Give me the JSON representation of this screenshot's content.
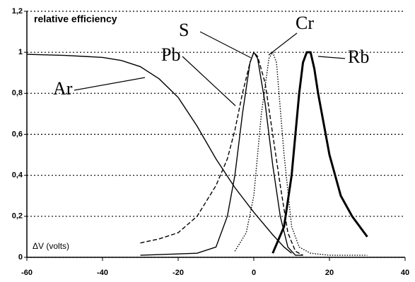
{
  "chart_data": {
    "type": "line",
    "ylabel": "relative efficiency",
    "xlabel": "ΔV (volts)",
    "xlim": [
      -60,
      40
    ],
    "xticks": [
      -60,
      -40,
      -20,
      0,
      20,
      40
    ],
    "ylim": [
      0,
      1.2
    ],
    "yticks": [
      0,
      {
        "value": 0.2,
        "label": "0,2"
      },
      {
        "value": 0.4,
        "label": "0,4"
      },
      {
        "value": 0.6,
        "label": "0,6"
      },
      {
        "value": 0.8,
        "label": "0,8"
      },
      1,
      {
        "value": 1.2,
        "label": "1,2"
      }
    ],
    "grid": true,
    "series": [
      {
        "name": "Ar",
        "color": "#000000",
        "style": "solid",
        "x": [
          -60,
          -50,
          -40,
          -35,
          -30,
          -25,
          -20,
          -15,
          -10,
          -5,
          0,
          5,
          8,
          10
        ],
        "values": [
          0.99,
          0.985,
          0.975,
          0.96,
          0.93,
          0.87,
          0.78,
          0.64,
          0.48,
          0.34,
          0.22,
          0.11,
          0.05,
          0.02
        ]
      },
      {
        "name": "Pb",
        "color": "#000000",
        "style": "dashed",
        "x": [
          -30,
          -25,
          -20,
          -15,
          -10,
          -7,
          -5,
          -3,
          -1,
          0,
          1,
          3,
          5,
          7,
          9,
          11,
          13
        ],
        "values": [
          0.07,
          0.09,
          0.12,
          0.2,
          0.35,
          0.48,
          0.62,
          0.8,
          0.95,
          1.0,
          0.98,
          0.85,
          0.6,
          0.35,
          0.12,
          0.03,
          0.01
        ]
      },
      {
        "name": "S",
        "color": "#000000",
        "style": "solid",
        "x": [
          -30,
          -15,
          -10,
          -7,
          -5,
          -3,
          -1,
          0,
          1,
          3,
          5,
          7,
          9,
          11,
          13
        ],
        "values": [
          0.01,
          0.02,
          0.05,
          0.2,
          0.4,
          0.7,
          0.95,
          1.0,
          0.97,
          0.75,
          0.45,
          0.2,
          0.05,
          0.01,
          0.01
        ]
      },
      {
        "name": "Cr",
        "color": "#000000",
        "style": "dotted",
        "x": [
          -5,
          -2,
          0,
          2,
          4,
          5,
          6,
          8,
          10,
          12,
          15,
          20,
          30
        ],
        "values": [
          0.03,
          0.12,
          0.3,
          0.7,
          0.97,
          1.0,
          0.95,
          0.5,
          0.15,
          0.05,
          0.02,
          0.01,
          0.01
        ]
      },
      {
        "name": "Rb",
        "color": "#000000",
        "style": "thick",
        "x": [
          5,
          8,
          10,
          12,
          13,
          14,
          15,
          16,
          17,
          20,
          23,
          26,
          30
        ],
        "values": [
          0.02,
          0.15,
          0.4,
          0.8,
          0.95,
          1.0,
          1.0,
          0.92,
          0.8,
          0.5,
          0.3,
          0.2,
          0.1
        ]
      }
    ]
  }
}
